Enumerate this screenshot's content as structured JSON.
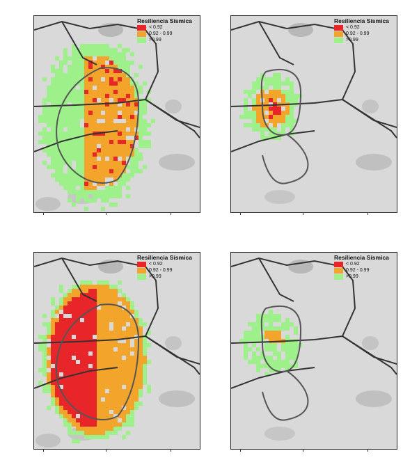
{
  "legend": {
    "title": "Resiliencia Sísmica",
    "items": [
      {
        "label": "< 0.92",
        "color": "#e8262a"
      },
      {
        "label": "0.92 - 0.99",
        "color": "#f3a42a"
      },
      {
        "label": ">0.99",
        "color": "#9ef08a"
      }
    ]
  },
  "maps": [
    {
      "id": "top-left",
      "severity": 2
    },
    {
      "id": "top-right",
      "severity": 1
    },
    {
      "id": "bottom-left",
      "severity": 3
    },
    {
      "id": "bottom-right",
      "severity": 0
    }
  ]
}
